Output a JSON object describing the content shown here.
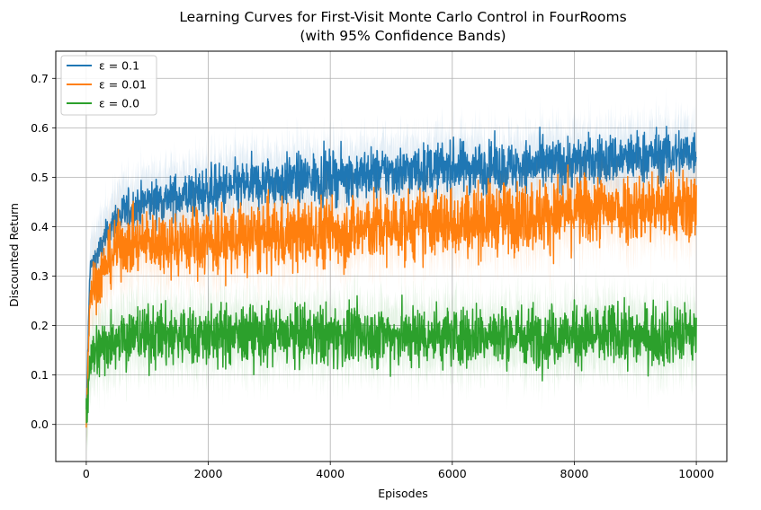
{
  "chart_data": {
    "type": "line",
    "title": "Learning Curves for First-Visit Monte Carlo Control in FourRooms",
    "subtitle": "(with 95% Confidence Bands)",
    "xlabel": "Episodes",
    "ylabel": "Discounted Return",
    "xlim": [
      -500,
      10500
    ],
    "ylim": [
      -0.075,
      0.755
    ],
    "xticks": [
      0,
      2000,
      4000,
      6000,
      8000,
      10000
    ],
    "xtick_labels": [
      "0",
      "2000",
      "4000",
      "6000",
      "8000",
      "10000"
    ],
    "yticks": [
      0.0,
      0.1,
      0.2,
      0.3,
      0.4,
      0.5,
      0.6,
      0.7
    ],
    "ytick_labels": [
      "0.0",
      "0.1",
      "0.2",
      "0.3",
      "0.4",
      "0.5",
      "0.6",
      "0.7"
    ],
    "grid": true,
    "legend_position": "top-left",
    "confidence_level": 0.95,
    "x_anchor_episodes": [
      0,
      500,
      1000,
      2000,
      3000,
      4000,
      5000,
      6000,
      7000,
      8000,
      9000,
      10000
    ],
    "series": [
      {
        "name": "ε = 0.1",
        "color": "#1f77b4",
        "mean_at_anchors": [
          0.3,
          0.42,
          0.45,
          0.47,
          0.49,
          0.5,
          0.51,
          0.52,
          0.52,
          0.53,
          0.54,
          0.55
        ],
        "spread_at_anchors": [
          0.02,
          0.04,
          0.04,
          0.05,
          0.05,
          0.05,
          0.05,
          0.05,
          0.05,
          0.05,
          0.05,
          0.05
        ]
      },
      {
        "name": "ε = 0.01",
        "color": "#ff7f0e",
        "mean_at_anchors": [
          0.25,
          0.36,
          0.37,
          0.37,
          0.38,
          0.39,
          0.4,
          0.41,
          0.42,
          0.43,
          0.44,
          0.44
        ],
        "spread_at_anchors": [
          0.05,
          0.06,
          0.06,
          0.07,
          0.07,
          0.07,
          0.07,
          0.07,
          0.07,
          0.07,
          0.07,
          0.07
        ]
      },
      {
        "name": "ε = 0.0",
        "color": "#2ca02c",
        "mean_at_anchors": [
          0.13,
          0.18,
          0.18,
          0.18,
          0.18,
          0.18,
          0.18,
          0.18,
          0.18,
          0.18,
          0.18,
          0.18
        ],
        "spread_at_anchors": [
          0.06,
          0.06,
          0.06,
          0.06,
          0.06,
          0.06,
          0.06,
          0.06,
          0.06,
          0.06,
          0.06,
          0.06
        ]
      }
    ]
  }
}
